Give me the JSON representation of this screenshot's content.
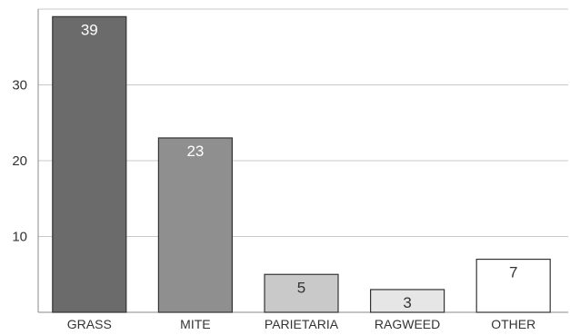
{
  "chart_data": {
    "type": "bar",
    "title": "",
    "xlabel": "",
    "ylabel": "",
    "categories": [
      "GRASS",
      "MITE",
      "PARIETARIA",
      "RAGWEED",
      "OTHER"
    ],
    "values": [
      39,
      23,
      5,
      3,
      7
    ],
    "ylim": [
      0,
      40
    ],
    "yticks": [
      10,
      20,
      30
    ],
    "grid": true,
    "legend": "none",
    "bar_colors": [
      "#6b6b6b",
      "#8f8f8f",
      "#c9c9c9",
      "#e6e6e6",
      "#ffffff"
    ],
    "label_colors": [
      "#ffffff",
      "#ffffff",
      "#333333",
      "#333333",
      "#333333"
    ],
    "bar_stroke": "#333333",
    "grid_color": "#c8c8c8"
  }
}
